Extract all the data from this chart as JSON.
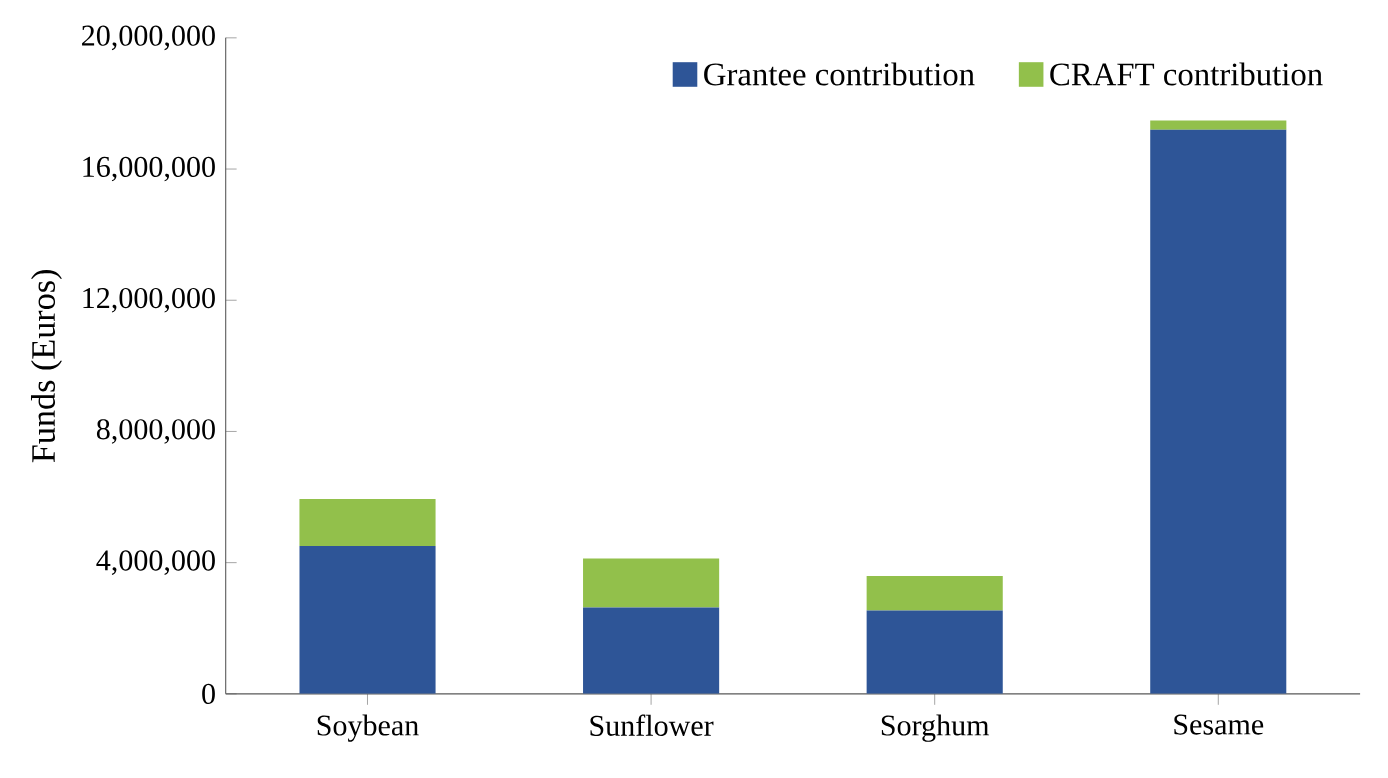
{
  "chart_data": {
    "type": "bar",
    "stacked": true,
    "ylabel": "Funds (Euros)",
    "categories": [
      "Soybean",
      "Sunflower",
      "Sorghum",
      "Sesame"
    ],
    "series": [
      {
        "name": "Grantee contribution",
        "color": "#2e5597",
        "values": [
          4510000,
          2630000,
          2540000,
          17200000
        ]
      },
      {
        "name": "CRAFT contribution",
        "color": "#92c04b",
        "values": [
          1430000,
          1500000,
          1050000,
          280000
        ]
      }
    ],
    "ylim": [
      0,
      20000000
    ],
    "yticks": [
      {
        "value": 0,
        "label": "0"
      },
      {
        "value": 4000000,
        "label": "4,000,000"
      },
      {
        "value": 8000000,
        "label": "8,000,000"
      },
      {
        "value": 12000000,
        "label": "12,000,000"
      },
      {
        "value": 16000000,
        "label": "16,000,000"
      },
      {
        "value": 20000000,
        "label": "20,000,000"
      }
    ],
    "legend": "top",
    "grid": false
  }
}
